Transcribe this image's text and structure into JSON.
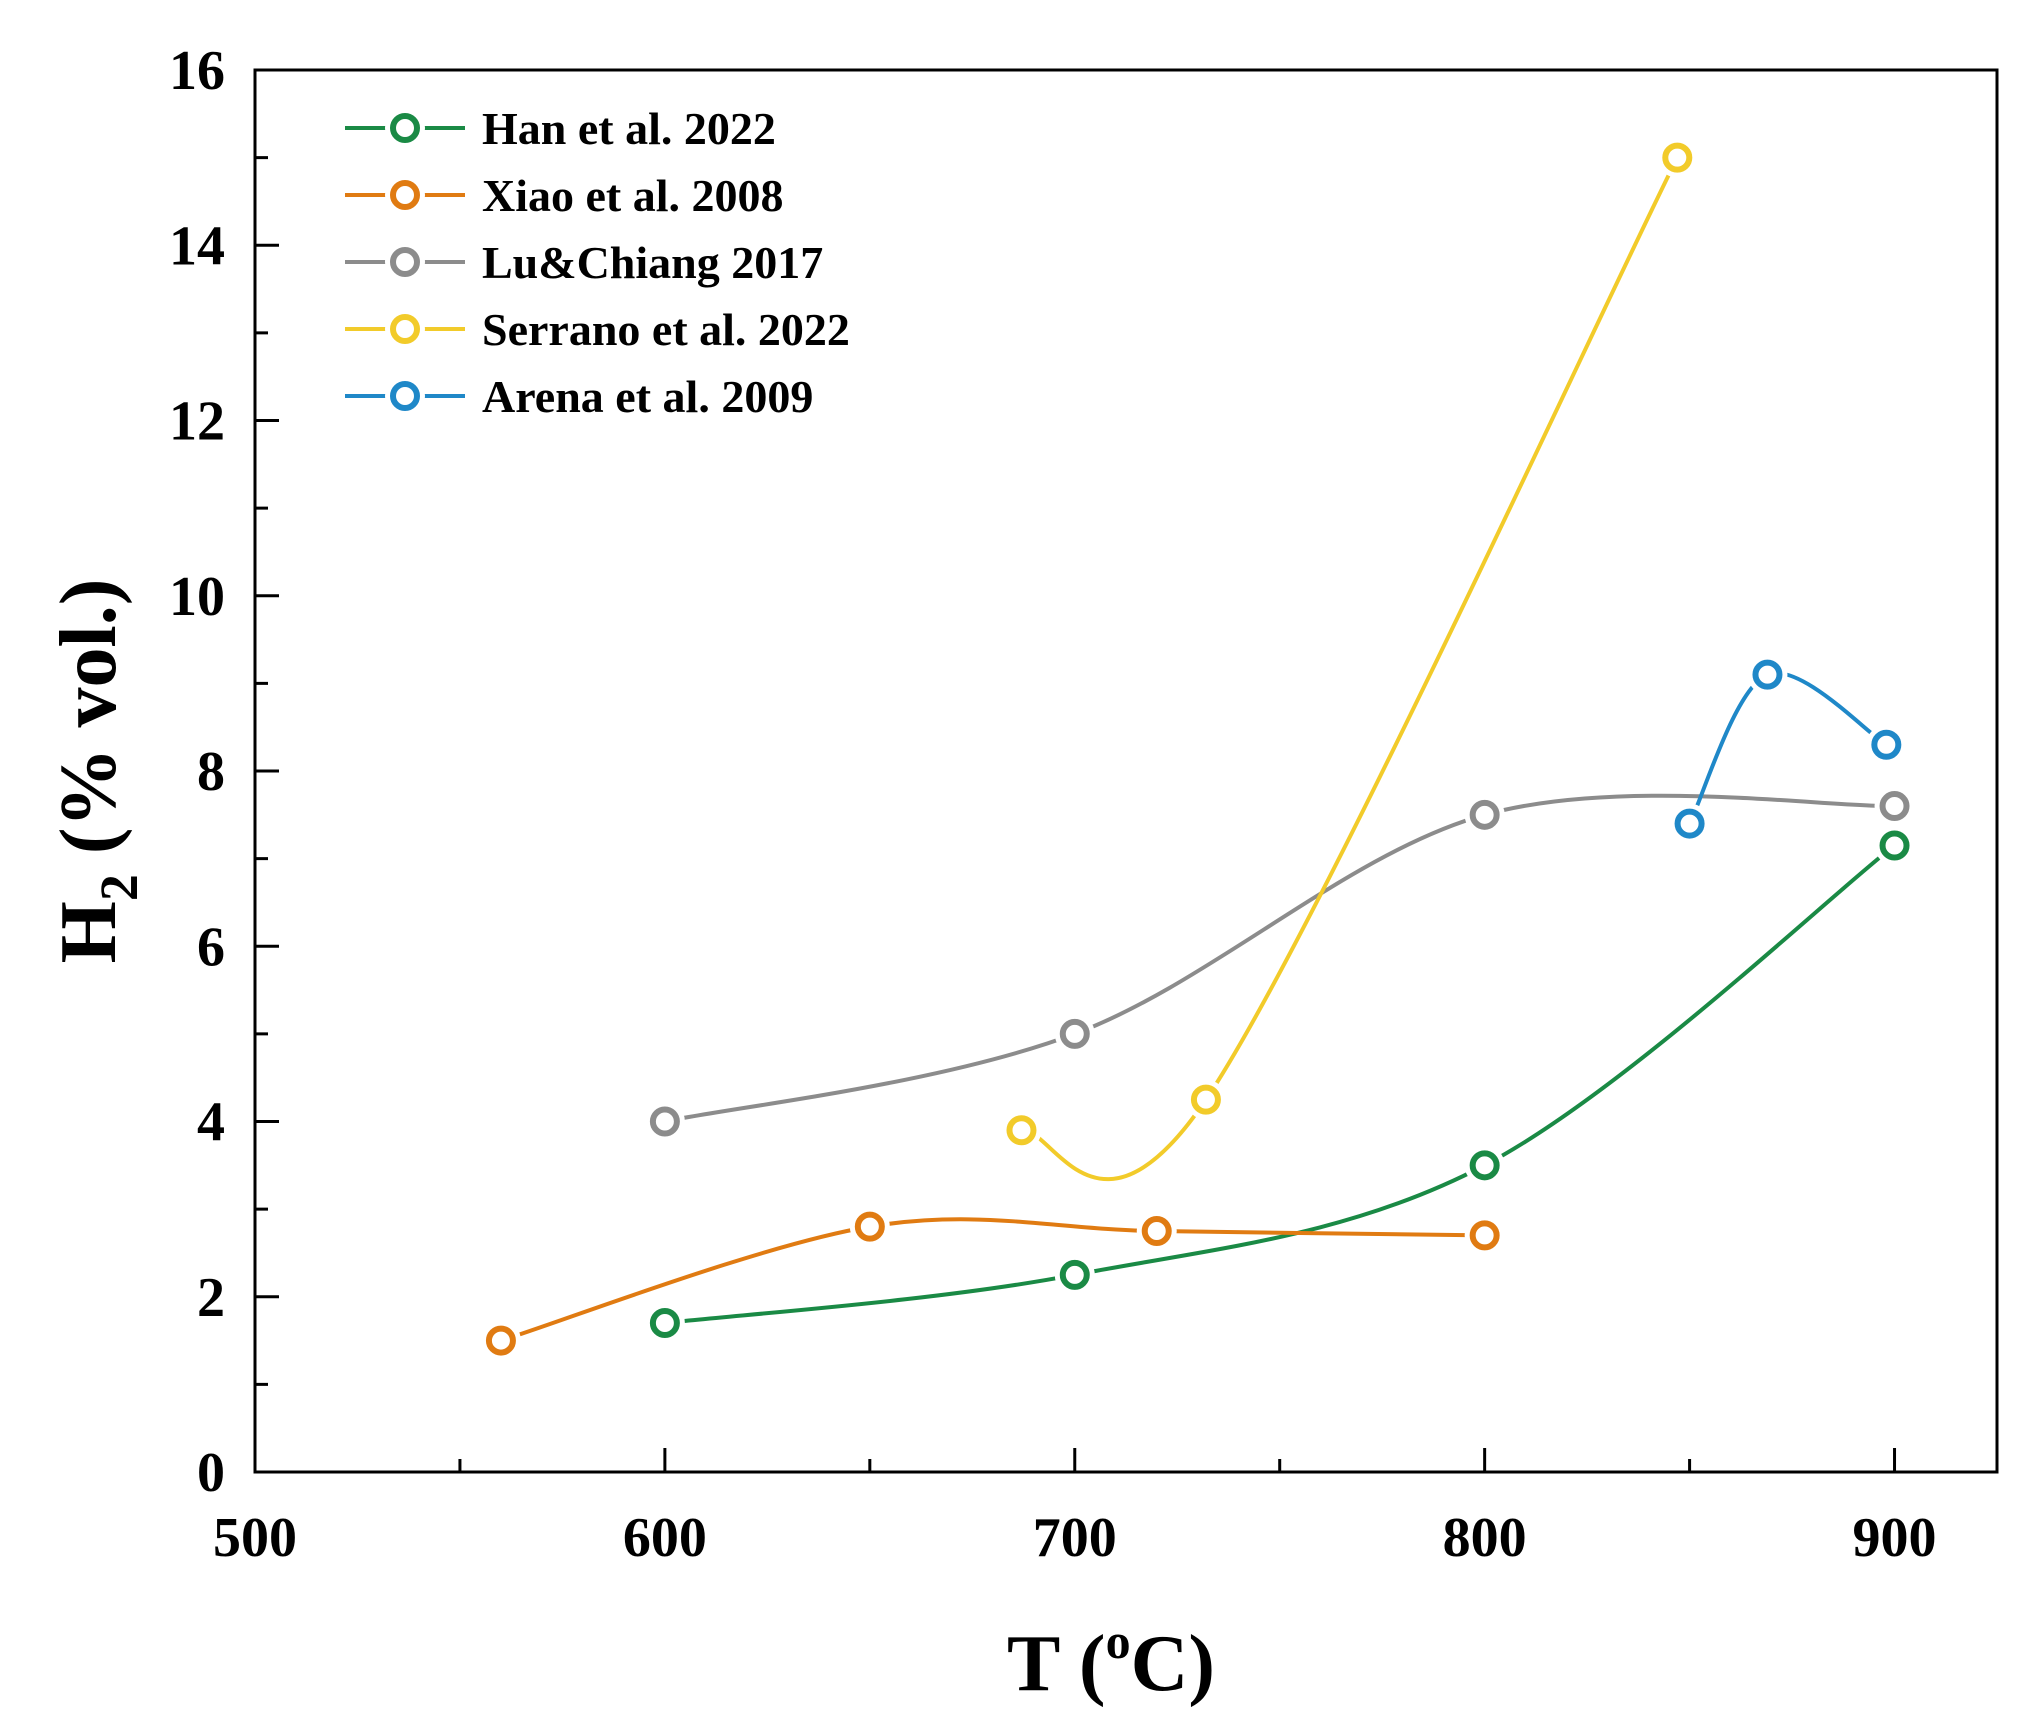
{
  "chart_data": {
    "type": "line",
    "xlabel": {
      "main": "T (",
      "sup": "o",
      "end": "C)"
    },
    "ylabel": {
      "main": "H",
      "sub": "2",
      "end": " (% vol.)"
    },
    "xlim": [
      500,
      925
    ],
    "ylim": [
      0,
      16
    ],
    "x_ticks": [
      500,
      600,
      700,
      800,
      900
    ],
    "x_minor_ticks": [
      550,
      650,
      750,
      850
    ],
    "y_ticks": [
      0,
      2,
      4,
      6,
      8,
      10,
      12,
      14,
      16
    ],
    "y_minor_ticks": [
      1,
      3,
      5,
      7,
      9,
      11,
      13,
      15
    ],
    "grid": false,
    "legend_position": "top-left",
    "series": [
      {
        "name": "Han et al. 2022",
        "color": "#1a8a45",
        "x": [
          600,
          700,
          800,
          900
        ],
        "y": [
          1.7,
          2.25,
          3.5,
          7.15
        ]
      },
      {
        "name": "Xiao et al. 2008",
        "color": "#e07b12",
        "x": [
          560,
          650,
          720,
          800
        ],
        "y": [
          1.5,
          2.8,
          2.75,
          2.7
        ]
      },
      {
        "name": "Lu&Chiang 2017",
        "color": "#8c8c8c",
        "x": [
          600,
          700,
          800,
          900
        ],
        "y": [
          4.0,
          5.0,
          7.5,
          7.6
        ]
      },
      {
        "name": "Serrano et al. 2022",
        "color": "#f2cb2a",
        "x": [
          687,
          732,
          847
        ],
        "y": [
          3.9,
          4.25,
          15.0
        ]
      },
      {
        "name": "Arena et al. 2009",
        "color": "#1f88c8",
        "x": [
          850,
          869,
          898
        ],
        "y": [
          7.4,
          9.1,
          8.3
        ]
      }
    ]
  }
}
